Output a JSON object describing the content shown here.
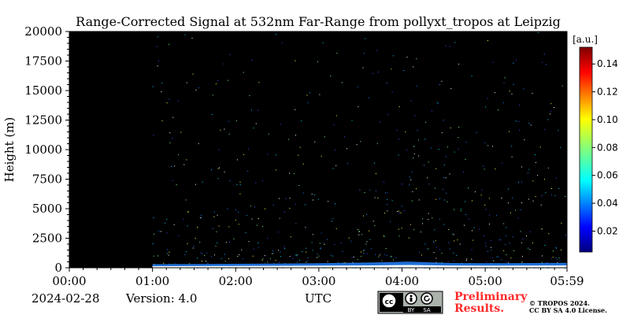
{
  "chart_data": {
    "type": "heatmap",
    "title": "Range-Corrected Signal at 532nm Far-Range from pollyxt_tropos at Leipzig",
    "xlabel": "UTC",
    "ylabel": "Height (m)",
    "x_ticks": [
      "00:00",
      "01:00",
      "02:00",
      "03:00",
      "04:00",
      "05:00",
      "05:59"
    ],
    "x_tick_minutes": [
      0,
      60,
      120,
      180,
      240,
      300,
      359
    ],
    "xlim_minutes": [
      0,
      359
    ],
    "y_ticks": [
      "0",
      "2500",
      "5000",
      "7500",
      "10000",
      "12500",
      "15000",
      "17500",
      "20000"
    ],
    "y_tick_values": [
      0,
      2500,
      5000,
      7500,
      10000,
      12500,
      15000,
      17500,
      20000
    ],
    "ylim": [
      0,
      20000
    ],
    "data_start_minute": 60,
    "background": "#000000",
    "colorbar": {
      "label": "[a.u.]",
      "ticks": [
        "0.02",
        "0.04",
        "0.06",
        "0.08",
        "0.10",
        "0.12",
        "0.14"
      ],
      "tick_values": [
        0.02,
        0.04,
        0.06,
        0.08,
        0.1,
        0.12,
        0.14
      ],
      "range": [
        0.005,
        0.152
      ],
      "colormap": "jet"
    },
    "boundary_layer": [
      {
        "minute": 60,
        "height": 300
      },
      {
        "minute": 120,
        "height": 330
      },
      {
        "minute": 180,
        "height": 380
      },
      {
        "minute": 220,
        "height": 450
      },
      {
        "minute": 245,
        "height": 520
      },
      {
        "minute": 275,
        "height": 400
      },
      {
        "minute": 300,
        "height": 380
      },
      {
        "minute": 359,
        "height": 420
      }
    ]
  },
  "footer": {
    "date": "2024-02-28",
    "version": "Version: 4.0",
    "xlabel": "UTC",
    "preliminary_line1": "Preliminary",
    "preliminary_line2": "Results.",
    "copyright_line1": "© TROPOS 2024.",
    "copyright_line2": "CC BY SA 4.0 License."
  },
  "license_badge": {
    "left": "BY",
    "right": "SA"
  }
}
